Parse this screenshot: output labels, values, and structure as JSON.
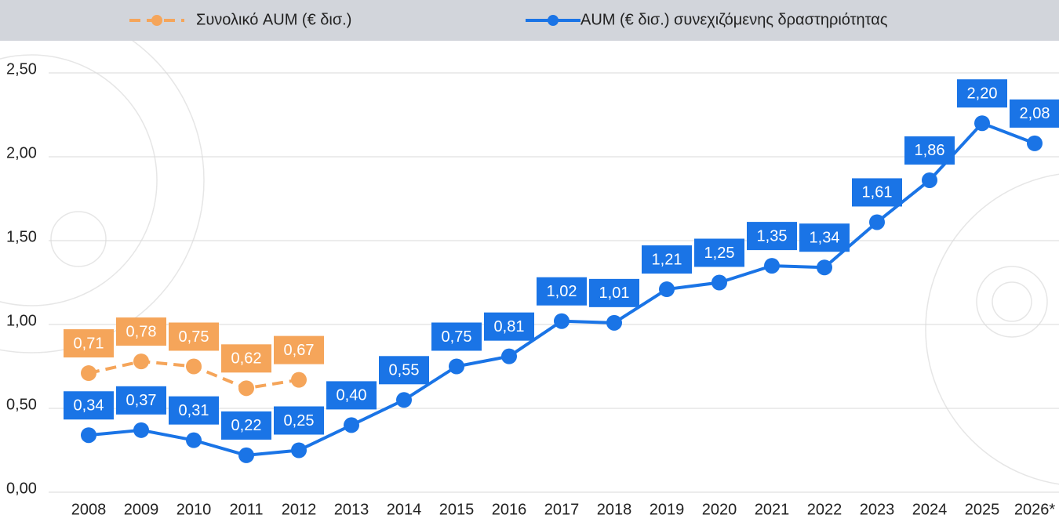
{
  "chart_data": {
    "type": "line",
    "categories": [
      "2008",
      "2009",
      "2010",
      "2011",
      "2012",
      "2013",
      "2014",
      "2015",
      "2016",
      "2017",
      "2018",
      "2019",
      "2020",
      "2021",
      "2022",
      "2023",
      "2024",
      "2025",
      "2026*"
    ],
    "series": [
      {
        "name": "Συνολικό AUM (€ δισ.)",
        "color": "#f5a55a",
        "line_style": "dashed",
        "values": [
          0.71,
          0.78,
          0.75,
          0.62,
          0.67,
          null,
          null,
          null,
          null,
          null,
          null,
          null,
          null,
          null,
          null,
          null,
          null,
          null,
          null
        ],
        "value_labels": [
          "0,71",
          "0,78",
          "0,75",
          "0,62",
          "0,67",
          null,
          null,
          null,
          null,
          null,
          null,
          null,
          null,
          null,
          null,
          null,
          null,
          null,
          null
        ]
      },
      {
        "name": "AUM (€ δισ.) συνεχιζόμενης δραστηριότητας",
        "color": "#1a74e6",
        "line_style": "solid",
        "values": [
          0.34,
          0.37,
          0.31,
          0.22,
          0.25,
          0.4,
          0.55,
          0.75,
          0.81,
          1.02,
          1.01,
          1.21,
          1.25,
          1.35,
          1.34,
          1.61,
          1.86,
          2.2,
          2.08
        ],
        "value_labels": [
          "0,34",
          "0,37",
          "0,31",
          "0,22",
          "0,25",
          "0,40",
          "0,55",
          "0,75",
          "0,81",
          "1,02",
          "1,01",
          "1,21",
          "1,25",
          "1,35",
          "1,34",
          "1,61",
          "1,86",
          "2,20",
          "2,08"
        ]
      }
    ],
    "ylim": [
      0,
      2.5
    ],
    "yticks": [
      {
        "value": 0,
        "label": "0,00"
      },
      {
        "value": 0.5,
        "label": "0,50"
      },
      {
        "value": 1,
        "label": "1,00"
      },
      {
        "value": 1.5,
        "label": "1,50"
      },
      {
        "value": 2,
        "label": "2,00"
      },
      {
        "value": 2.5,
        "label": "2,50"
      }
    ],
    "grid": true,
    "legend": "top"
  }
}
